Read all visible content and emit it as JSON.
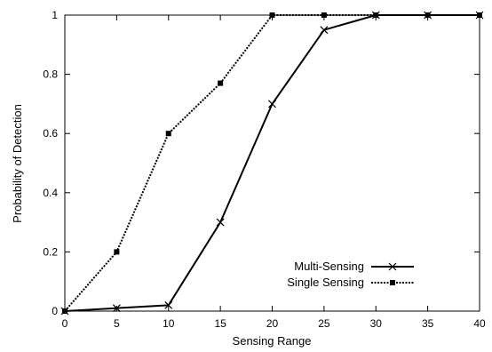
{
  "chart_data": {
    "type": "line",
    "title": "",
    "xlabel": "Sensing Range",
    "ylabel": "Probability of Detection",
    "xlim": [
      0,
      40
    ],
    "ylim": [
      0,
      1
    ],
    "xticks": [
      0,
      5,
      10,
      15,
      20,
      25,
      30,
      35,
      40
    ],
    "yticks": [
      0,
      0.2,
      0.4,
      0.6,
      0.8,
      1
    ],
    "ytick_labels": [
      "0",
      "0.2",
      "0.4",
      "0.6",
      "0.8",
      "1"
    ],
    "grid": false,
    "legend_position": "bottom-right",
    "series": [
      {
        "name": "Multi-Sensing",
        "line_style": "solid",
        "marker": "plus",
        "color": "#000000",
        "x": [
          0,
          5,
          10,
          15,
          20,
          25,
          30,
          35,
          40
        ],
        "y": [
          0,
          0.01,
          0.02,
          0.3,
          0.7,
          0.95,
          1,
          1,
          1
        ]
      },
      {
        "name": "Single Sensing",
        "line_style": "dotted",
        "marker": "square",
        "color": "#000000",
        "x": [
          0,
          5,
          10,
          15,
          20,
          25,
          30,
          35,
          40
        ],
        "y": [
          0,
          0.2,
          0.6,
          0.77,
          1,
          1,
          1,
          1,
          1
        ]
      }
    ]
  }
}
